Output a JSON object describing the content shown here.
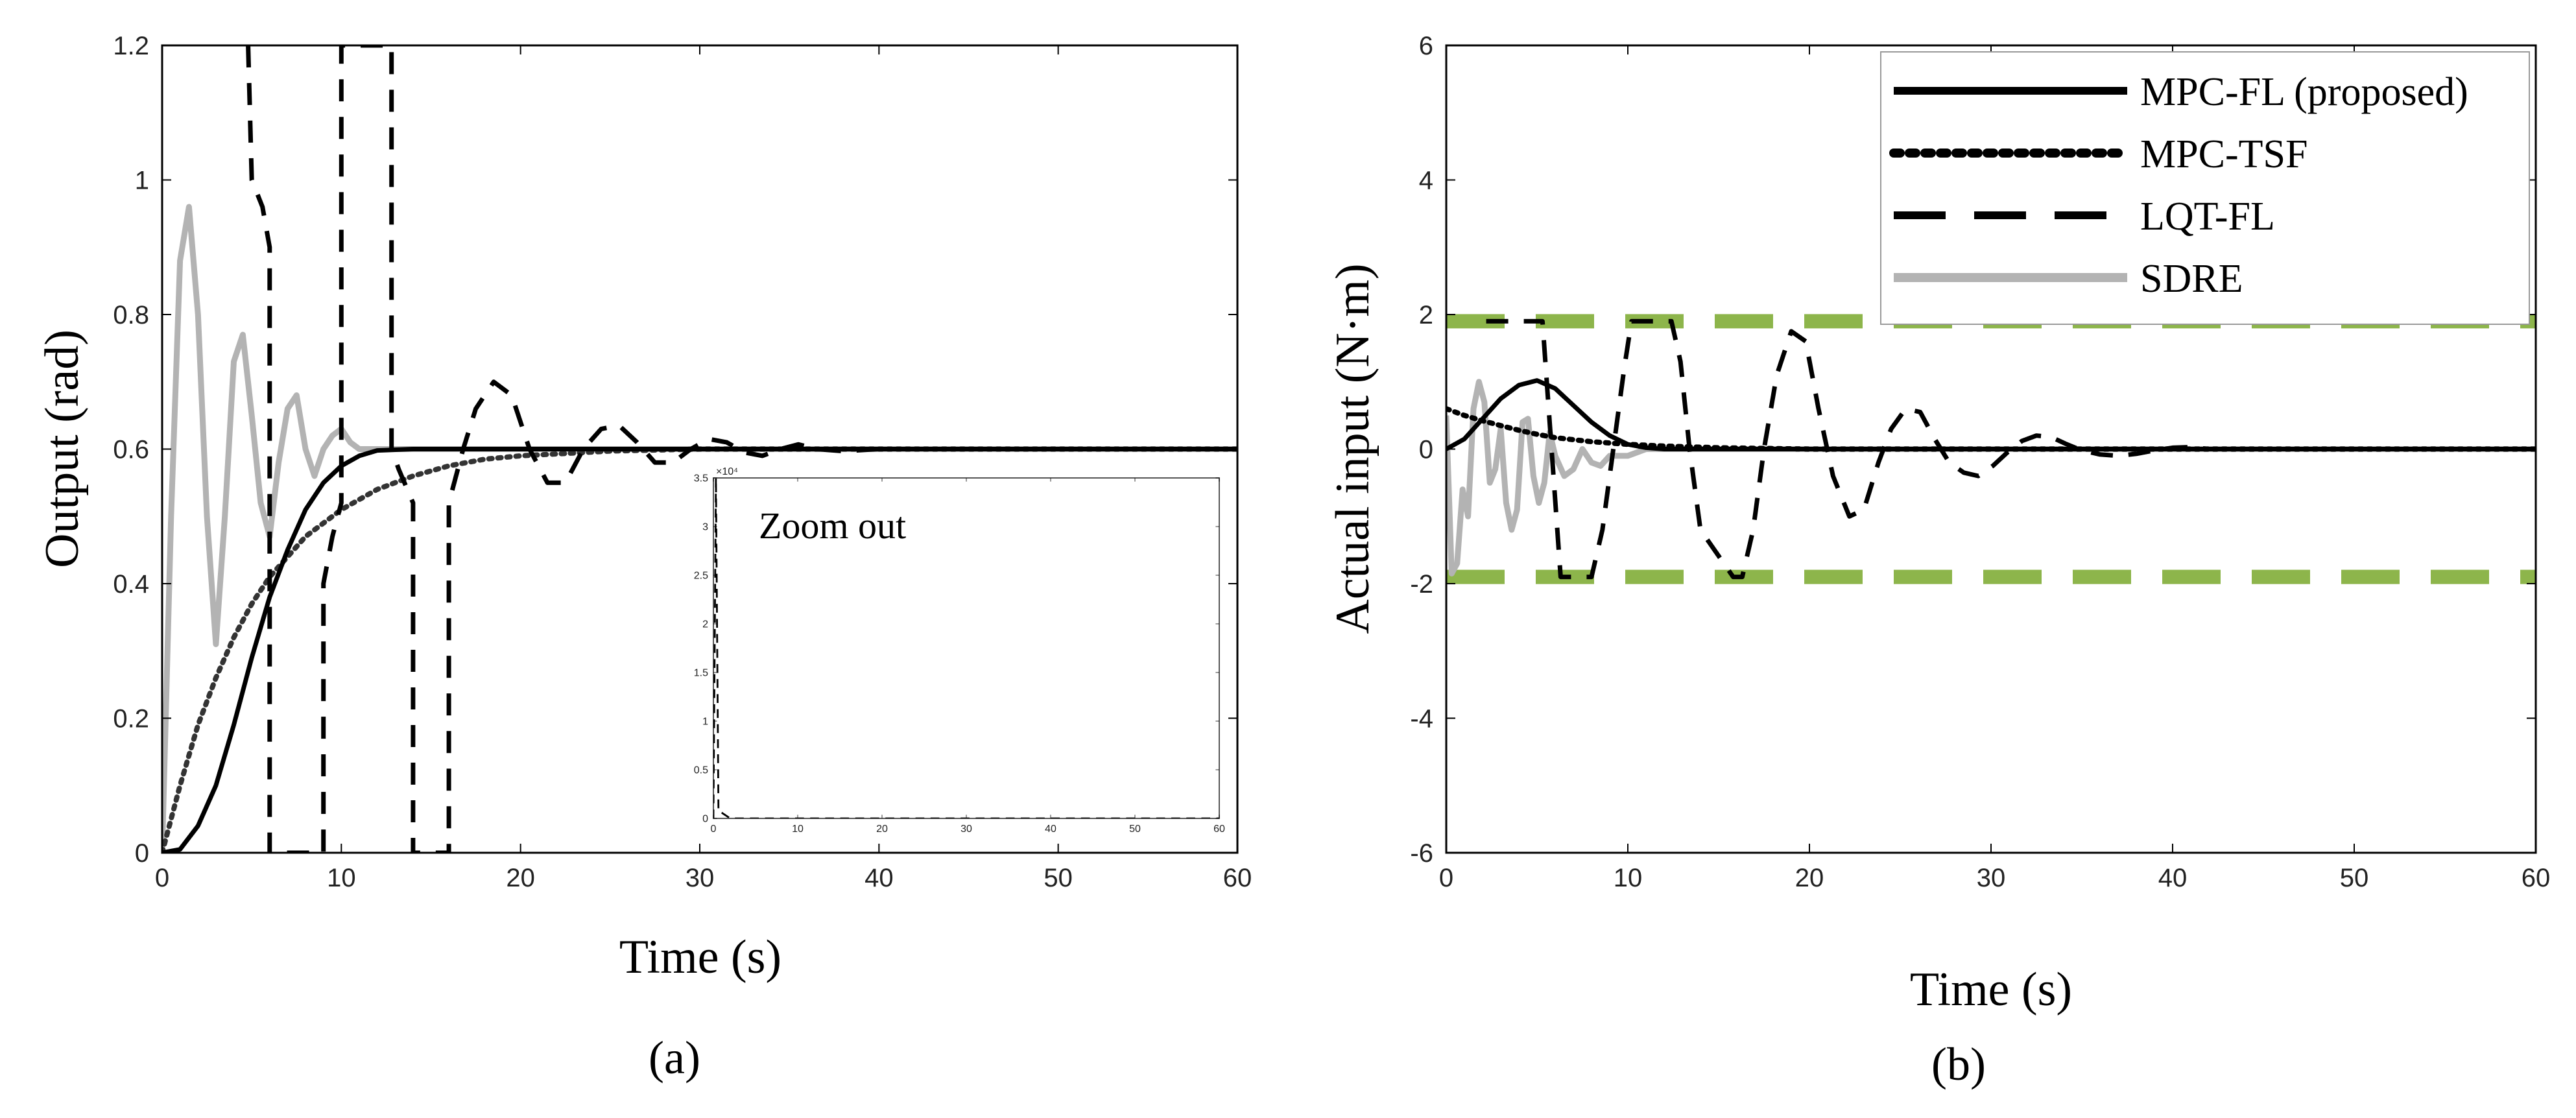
{
  "chart_data": [
    {
      "id": "a",
      "type": "line",
      "caption": "(a)",
      "xlabel": "Time (s)",
      "ylabel": "Output (rad)",
      "xlim": [
        0,
        60
      ],
      "ylim": [
        0,
        1.2
      ],
      "xticks": [
        "0",
        "10",
        "20",
        "30",
        "40",
        "50",
        "60"
      ],
      "yticks": [
        "0",
        "0.2",
        "0.4",
        "0.6",
        "0.8",
        "1",
        "1.2"
      ],
      "series": [
        {
          "name": "SDRE",
          "style": "solid",
          "color": "#b3b3b3",
          "x": [
            0,
            0.5,
            1.0,
            1.5,
            2.0,
            2.5,
            3.0,
            3.5,
            4.0,
            4.5,
            5.0,
            5.5,
            6.0,
            6.5,
            7.0,
            7.5,
            8.0,
            8.5,
            9.0,
            9.5,
            10.0,
            10.5,
            11.0,
            12.0,
            13.0,
            14.0,
            15.0,
            20.0,
            30.0,
            40.0,
            50.0,
            60.0
          ],
          "y": [
            0,
            0.5,
            0.88,
            0.96,
            0.8,
            0.5,
            0.31,
            0.5,
            0.73,
            0.77,
            0.65,
            0.52,
            0.47,
            0.58,
            0.66,
            0.68,
            0.6,
            0.56,
            0.6,
            0.62,
            0.63,
            0.61,
            0.6,
            0.6,
            0.6,
            0.6,
            0.6,
            0.6,
            0.6,
            0.6,
            0.6,
            0.6
          ]
        },
        {
          "name": "MPC-TSF",
          "style": "dotted",
          "color": "#333333",
          "x": [
            0,
            1,
            2,
            3,
            4,
            5,
            6,
            8,
            10,
            12,
            14,
            16,
            18,
            20,
            25,
            30,
            40,
            50,
            60
          ],
          "y": [
            0,
            0.1,
            0.19,
            0.26,
            0.32,
            0.37,
            0.41,
            0.47,
            0.51,
            0.54,
            0.56,
            0.575,
            0.585,
            0.59,
            0.597,
            0.6,
            0.6,
            0.6,
            0.6
          ]
        },
        {
          "name": "MPC-FL (proposed)",
          "style": "solid",
          "color": "#000000",
          "x": [
            0,
            1,
            2,
            3,
            4,
            5,
            6,
            7,
            8,
            9,
            10,
            11,
            12,
            14,
            20,
            30,
            40,
            50,
            60
          ],
          "y": [
            0,
            0.005,
            0.04,
            0.1,
            0.19,
            0.29,
            0.38,
            0.45,
            0.51,
            0.55,
            0.575,
            0.59,
            0.598,
            0.6,
            0.6,
            0.6,
            0.6,
            0.6,
            0.6
          ]
        },
        {
          "name": "LQT-FL",
          "style": "dashed",
          "color": "#000000",
          "x": [
            4.8,
            5.0,
            5.6,
            6.0,
            6.0,
            9.0,
            9.0,
            9.5,
            10.0,
            10.0,
            12.8,
            12.8,
            13.2,
            14.0,
            14.0,
            16.0,
            16.0,
            16.8,
            17.5,
            18.5,
            19.5,
            20.5,
            21.5,
            22.5,
            23.5,
            24.5,
            25.5,
            26.5,
            27.5,
            28.5,
            29.5,
            30.5,
            31.5,
            32.5,
            33.5,
            34.5,
            35.5,
            36.5,
            38,
            40,
            45,
            50,
            55,
            60
          ],
          "y": [
            1.2,
            1.0,
            0.96,
            0.9,
            0.0,
            0.0,
            0.4,
            0.47,
            0.52,
            1.2,
            1.2,
            0.6,
            0.57,
            0.52,
            0.0,
            0.0,
            0.52,
            0.6,
            0.66,
            0.7,
            0.68,
            0.6,
            0.55,
            0.55,
            0.6,
            0.63,
            0.635,
            0.61,
            0.58,
            0.58,
            0.6,
            0.615,
            0.61,
            0.595,
            0.59,
            0.6,
            0.607,
            0.6,
            0.597,
            0.6,
            0.6,
            0.6,
            0.6,
            0.6
          ]
        }
      ],
      "inset": {
        "label": "Zoom out",
        "xlim": [
          0,
          60
        ],
        "ylim": [
          0,
          36000
        ],
        "xticks": [
          "0",
          "10",
          "20",
          "30",
          "40",
          "50",
          "60"
        ],
        "yticks": [
          "0",
          "0.5",
          "1",
          "1.5",
          "2",
          "2.5",
          "3",
          "3.5"
        ],
        "exponent": "×10⁴",
        "series": [
          {
            "name": "LQT-FL",
            "style": "dashed",
            "x": [
              0,
              0.3,
              0.6,
              1,
              2,
              60
            ],
            "y": [
              0,
              36000,
              800,
              600,
              0,
              0
            ]
          }
        ]
      }
    },
    {
      "id": "b",
      "type": "line",
      "caption": "(b)",
      "xlabel": "Time (s)",
      "ylabel": "Actual input (N·m)",
      "xlim": [
        0,
        60
      ],
      "ylim": [
        -6,
        6
      ],
      "xticks": [
        "0",
        "10",
        "20",
        "30",
        "40",
        "50",
        "60"
      ],
      "yticks": [
        "-6",
        "-4",
        "-2",
        "0",
        "2",
        "4",
        "6"
      ],
      "legend": {
        "position": "top-right",
        "entries": [
          {
            "label": "MPC-FL (proposed)",
            "style": "solid",
            "color": "#000000"
          },
          {
            "label": "MPC-TSF",
            "style": "dotted",
            "color": "#000000"
          },
          {
            "label": "LQT-FL",
            "style": "dashed",
            "color": "#000000"
          },
          {
            "label": "SDRE",
            "style": "solid",
            "color": "#b3b3b3"
          }
        ]
      },
      "limits": {
        "upper": 1.9,
        "lower": -1.9,
        "color": "#8db54b",
        "style": "dashed"
      },
      "series": [
        {
          "name": "SDRE",
          "style": "solid",
          "color": "#b3b3b3",
          "x": [
            0,
            0.3,
            0.6,
            0.9,
            1.2,
            1.5,
            1.8,
            2.1,
            2.4,
            2.7,
            3.0,
            3.3,
            3.6,
            3.9,
            4.2,
            4.5,
            4.8,
            5.1,
            5.4,
            5.7,
            6.0,
            6.5,
            7.0,
            7.5,
            8.0,
            8.5,
            9.0,
            10,
            11,
            12,
            60
          ],
          "y": [
            0.5,
            -1.85,
            -1.7,
            -0.6,
            -1.0,
            0.6,
            1.0,
            0.7,
            -0.5,
            -0.3,
            0.3,
            -0.8,
            -1.2,
            -0.9,
            0.4,
            0.45,
            -0.4,
            -0.8,
            -0.5,
            0.25,
            -0.1,
            -0.4,
            -0.3,
            0.0,
            -0.2,
            -0.25,
            -0.1,
            -0.1,
            0.0,
            0.0,
            0.0
          ]
        },
        {
          "name": "MPC-TSF",
          "style": "dotted",
          "color": "#000000",
          "x": [
            0,
            1,
            2,
            3,
            4,
            5,
            6,
            8,
            10,
            12,
            15,
            20,
            30,
            40,
            50,
            60
          ],
          "y": [
            0.6,
            0.5,
            0.42,
            0.35,
            0.28,
            0.22,
            0.17,
            0.11,
            0.07,
            0.045,
            0.02,
            0.0,
            0.0,
            0.0,
            0.0,
            0.0
          ]
        },
        {
          "name": "MPC-FL (proposed)",
          "style": "solid",
          "color": "#000000",
          "x": [
            0,
            1,
            2,
            3,
            4,
            5,
            6,
            7,
            8,
            9,
            10,
            11,
            12,
            14,
            20,
            30,
            40,
            50,
            60
          ],
          "y": [
            0,
            0.15,
            0.45,
            0.75,
            0.95,
            1.02,
            0.9,
            0.65,
            0.4,
            0.2,
            0.07,
            0.02,
            0.0,
            0.0,
            0.0,
            0.0,
            0.0,
            0.0,
            0.0
          ]
        },
        {
          "name": "LQT-FL",
          "style": "dashed",
          "color": "#000000",
          "x": [
            2.2,
            4.5,
            5.3,
            5.8,
            6.3,
            8.0,
            8.6,
            9.2,
            9.8,
            10.2,
            12.4,
            12.9,
            13.4,
            14.0,
            15.8,
            16.3,
            16.9,
            17.5,
            18.2,
            19.0,
            19.8,
            20.5,
            21.3,
            22.2,
            23.0,
            23.8,
            24.5,
            25.3,
            26.1,
            26.9,
            27.7,
            28.5,
            29.3,
            30.1,
            30.9,
            31.7,
            32.5,
            33.3,
            34.1,
            35.0,
            36.0,
            37.0,
            38.0,
            39.0,
            40.0,
            41.0,
            42.0,
            45,
            50,
            55,
            60
          ],
          "y": [
            1.9,
            1.9,
            1.9,
            0.0,
            -1.9,
            -1.9,
            -1.2,
            0.0,
            1.2,
            1.9,
            1.9,
            1.3,
            0.0,
            -1.2,
            -1.9,
            -1.9,
            -1.2,
            0.0,
            1.1,
            1.75,
            1.6,
            0.6,
            -0.4,
            -1.0,
            -0.9,
            -0.2,
            0.3,
            0.6,
            0.55,
            0.15,
            -0.2,
            -0.35,
            -0.4,
            -0.25,
            -0.05,
            0.12,
            0.2,
            0.18,
            0.08,
            -0.02,
            -0.08,
            -0.1,
            -0.07,
            -0.02,
            0.02,
            0.03,
            0.0,
            0.0,
            0.0,
            0.0,
            0.0
          ]
        }
      ]
    }
  ]
}
